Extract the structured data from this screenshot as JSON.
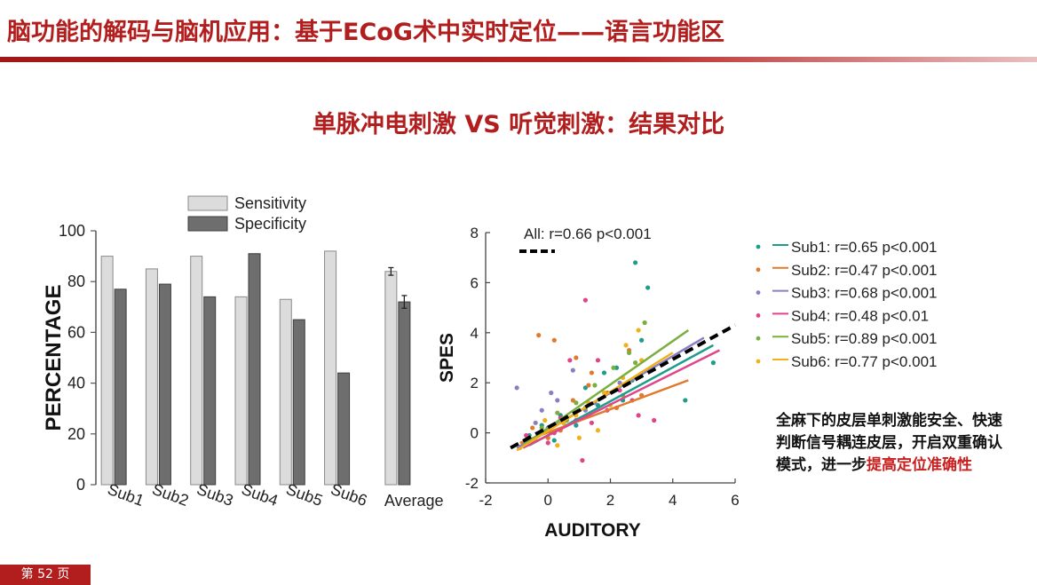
{
  "slide": {
    "title": "脑功能的解码与脑机应用：基于ECoG术中实时定位——语言功能区",
    "subtitle": "单脉冲电刺激 VS 听觉刺激：结果对比",
    "note_pre": "全麻下的皮层单刺激能安全、快速判断信号耦连皮层，开启双重确认模式，进一步",
    "note_highlight": "提高定位准确性",
    "page_label": "第 52 页"
  },
  "colors": {
    "accent": "#b21e1e",
    "sensitivity": "#dcdcdc",
    "specificity": "#6e6e6e",
    "sub1": "#1f9c8c",
    "sub2": "#e07a2e",
    "sub3": "#8a7fc4",
    "sub4": "#e0458a",
    "sub5": "#7aae3e",
    "sub6": "#f0b21a"
  },
  "chart_data": [
    {
      "type": "bar",
      "categories": [
        "Sub1",
        "Sub2",
        "Sub3",
        "Sub4",
        "Sub5",
        "Sub6",
        "Average"
      ],
      "series": [
        {
          "name": "Sensitivity",
          "values": [
            90,
            85,
            90,
            74,
            73,
            92,
            84
          ],
          "errors": [
            0,
            0,
            0,
            0,
            0,
            0,
            1.5
          ]
        },
        {
          "name": "Specificity",
          "values": [
            77,
            79,
            74,
            91,
            65,
            44,
            72
          ],
          "errors": [
            0,
            0,
            0,
            0,
            0,
            0,
            2.5
          ]
        }
      ],
      "xlabel": "",
      "ylabel": "PERCENTAGE",
      "ylim": [
        0,
        100
      ],
      "yticks": [
        0,
        20,
        40,
        60,
        80,
        100
      ],
      "legend": "top-center"
    },
    {
      "type": "scatter",
      "title": "All: r=0.66  p<0.001",
      "xlabel": "AUDITORY",
      "ylabel": "SPES",
      "xlim": [
        -2,
        6
      ],
      "ylim": [
        -2,
        8
      ],
      "xticks": [
        -2,
        0,
        2,
        4,
        6
      ],
      "yticks": [
        -2,
        0,
        2,
        4,
        6,
        8
      ],
      "legend": "right",
      "overall_fit": {
        "x": [
          -1.2,
          6
        ],
        "y": [
          -0.6,
          4.3
        ]
      },
      "series": [
        {
          "name": "Sub1",
          "label": "Sub1: r=0.65  p<0.001",
          "color_key": "sub1",
          "points": [
            [
              -0.2,
              0.3
            ],
            [
              0.4,
              0.7
            ],
            [
              1.2,
              1.8
            ],
            [
              1.6,
              1.1
            ],
            [
              2.2,
              2.6
            ],
            [
              2.7,
              2.1
            ],
            [
              3.0,
              3.7
            ],
            [
              3.2,
              5.8
            ],
            [
              4.4,
              1.3
            ],
            [
              5.3,
              2.8
            ],
            [
              2.8,
              6.8
            ],
            [
              0.9,
              0.3
            ],
            [
              -0.6,
              -0.1
            ],
            [
              0.2,
              -0.3
            ],
            [
              1.8,
              2.4
            ],
            [
              2.4,
              1.3
            ]
          ],
          "fit": {
            "x": [
              -0.6,
              5.3
            ],
            "y": [
              -0.5,
              3.5
            ]
          }
        },
        {
          "name": "Sub2",
          "label": "Sub2: r=0.47  p<0.001",
          "color_key": "sub2",
          "points": [
            [
              -0.3,
              3.9
            ],
            [
              0.2,
              3.7
            ],
            [
              0.8,
              1.3
            ],
            [
              1.3,
              1.9
            ],
            [
              -0.8,
              -0.4
            ],
            [
              0.4,
              0.1
            ],
            [
              2.2,
              1.0
            ],
            [
              2.6,
              3.3
            ],
            [
              1.4,
              2.4
            ],
            [
              0.6,
              0.5
            ],
            [
              0,
              -0.2
            ],
            [
              1.9,
              1.6
            ],
            [
              3.0,
              1.5
            ],
            [
              0.9,
              3.0
            ],
            [
              -0.5,
              0.2
            ]
          ],
          "fit": {
            "x": [
              -0.9,
              4.5
            ],
            "y": [
              -0.4,
              2.1
            ]
          }
        },
        {
          "name": "Sub3",
          "label": "Sub3: r=0.68  p<0.001",
          "color_key": "sub3",
          "points": [
            [
              -1.0,
              1.8
            ],
            [
              -0.2,
              0.9
            ],
            [
              0.3,
              1.3
            ],
            [
              0.8,
              2.5
            ],
            [
              1.2,
              0.9
            ],
            [
              0.0,
              0.2
            ],
            [
              -0.6,
              -0.3
            ],
            [
              0.5,
              0.4
            ],
            [
              1.5,
              1.2
            ],
            [
              2.3,
              2.0
            ],
            [
              0.1,
              1.6
            ],
            [
              -0.4,
              0.4
            ]
          ],
          "fit": {
            "x": [
              -1.0,
              5.0
            ],
            "y": [
              -0.6,
              3.8
            ]
          }
        },
        {
          "name": "Sub4",
          "label": "Sub4: r=0.48  p<0.01",
          "color_key": "sub4",
          "points": [
            [
              0.4,
              0.6
            ],
            [
              0.9,
              0.5
            ],
            [
              1.1,
              -1.1
            ],
            [
              1.4,
              0.4
            ],
            [
              0.2,
              0.0
            ],
            [
              1.6,
              2.9
            ],
            [
              2.3,
              1.7
            ],
            [
              1.2,
              5.3
            ],
            [
              2.9,
              0.7
            ],
            [
              3.4,
              0.5
            ],
            [
              0.7,
              2.9
            ],
            [
              -0.7,
              -0.1
            ],
            [
              1.9,
              0.9
            ],
            [
              2.7,
              1.3
            ],
            [
              0.0,
              -0.4
            ]
          ],
          "fit": {
            "x": [
              -0.8,
              5.5
            ],
            "y": [
              -0.6,
              3.3
            ]
          }
        },
        {
          "name": "Sub5",
          "label": "Sub5: r=0.89  p<0.001",
          "color_key": "sub5",
          "points": [
            [
              -0.8,
              -0.5
            ],
            [
              -0.2,
              0.2
            ],
            [
              0.3,
              0.8
            ],
            [
              0.9,
              1.2
            ],
            [
              1.5,
              1.9
            ],
            [
              2.1,
              2.6
            ],
            [
              2.6,
              3.2
            ],
            [
              3.1,
              4.4
            ],
            [
              2.8,
              2.8
            ],
            [
              1.2,
              1.0
            ],
            [
              0.6,
              0.5
            ],
            [
              -0.5,
              -0.3
            ],
            [
              2.4,
              1.5
            ]
          ],
          "fit": {
            "x": [
              -0.8,
              4.5
            ],
            "y": [
              -0.5,
              4.1
            ]
          }
        },
        {
          "name": "Sub6",
          "label": "Sub6: r=0.77  p<0.001",
          "color_key": "sub6",
          "points": [
            [
              -0.9,
              -0.6
            ],
            [
              -0.4,
              -0.3
            ],
            [
              0.1,
              0.0
            ],
            [
              0.5,
              0.4
            ],
            [
              0.9,
              0.7
            ],
            [
              1.3,
              1.2
            ],
            [
              1.8,
              1.6
            ],
            [
              2.4,
              2.2
            ],
            [
              2.9,
              4.1
            ],
            [
              2.5,
              3.5
            ],
            [
              3.0,
              2.9
            ],
            [
              0.3,
              -0.5
            ],
            [
              1.0,
              -0.2
            ],
            [
              -0.1,
              0.5
            ],
            [
              1.6,
              0.1
            ],
            [
              2.0,
              1.1
            ]
          ],
          "fit": {
            "x": [
              -1.0,
              4.0
            ],
            "y": [
              -0.7,
              3.2
            ]
          }
        }
      ]
    }
  ]
}
